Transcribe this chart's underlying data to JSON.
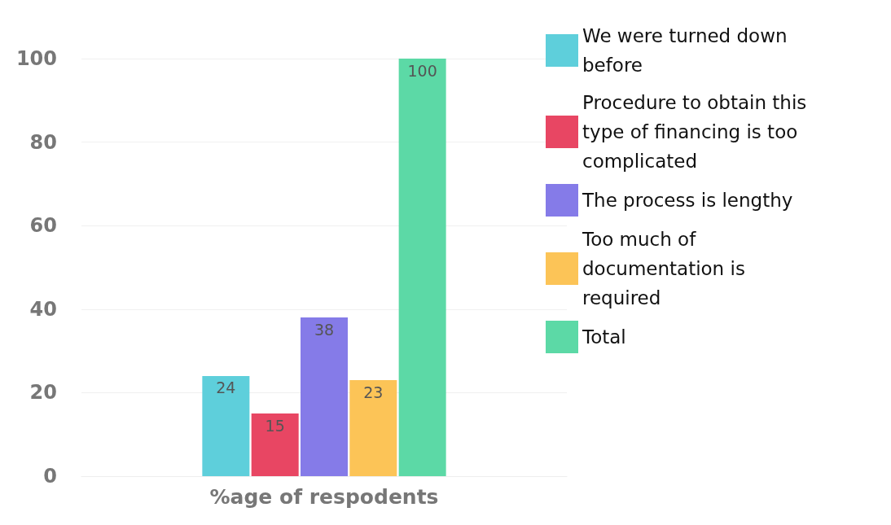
{
  "chart_data": {
    "type": "bar",
    "xlabel": "%age of respodents",
    "categories": [
      null
    ],
    "series": [
      {
        "name": "We were turned down before",
        "color": "#5ecfdb",
        "values": [
          24
        ]
      },
      {
        "name": "Procedure to obtain this type of financing is too complicated",
        "color": "#e84663",
        "values": [
          15
        ]
      },
      {
        "name": "The process is lengthy",
        "color": "#857be8",
        "values": [
          38
        ]
      },
      {
        "name": "Too much of documentation is required",
        "color": "#fcc457",
        "values": [
          23
        ]
      },
      {
        "name": "Total",
        "color": "#5cd9a6",
        "values": [
          100
        ]
      }
    ],
    "ylim": [
      0,
      100
    ],
    "yticks": [
      0,
      20,
      40,
      60,
      80,
      100
    ],
    "grid": "y",
    "legend": "right",
    "data_labels": true
  }
}
